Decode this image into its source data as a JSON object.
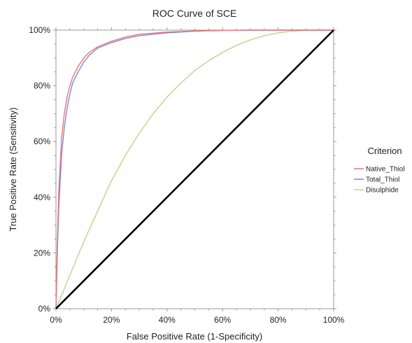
{
  "chart_data": {
    "type": "line",
    "title": "ROC Curve of SCE",
    "xlabel": "False Positive Rate (1-Specificity)",
    "ylabel": "True Positive Rate (Sensitivity)",
    "xlim": [
      0,
      1
    ],
    "ylim": [
      0,
      1
    ],
    "x_ticks": [
      "0%",
      "20%",
      "40%",
      "60%",
      "80%",
      "100%"
    ],
    "y_ticks": [
      "0%",
      "20%",
      "40%",
      "60%",
      "80%",
      "100%"
    ],
    "grid": false,
    "legend": {
      "title": "Criterion",
      "placement": "right"
    },
    "series": [
      {
        "name": "Native_Thiol",
        "color": "#e8767a",
        "x": [
          0,
          0.005,
          0.01,
          0.02,
          0.03,
          0.04,
          0.05,
          0.06,
          0.08,
          0.1,
          0.12,
          0.15,
          0.2,
          0.25,
          0.3,
          0.4,
          0.5,
          0.6,
          0.7,
          0.8,
          0.9,
          1.0
        ],
        "y": [
          0,
          0.24,
          0.42,
          0.61,
          0.7,
          0.76,
          0.8,
          0.83,
          0.87,
          0.9,
          0.92,
          0.94,
          0.96,
          0.975,
          0.985,
          0.993,
          0.997,
          0.999,
          1.0,
          1.0,
          1.0,
          1.0
        ]
      },
      {
        "name": "Total_Thiol",
        "color": "#7f85e0",
        "x": [
          0,
          0.005,
          0.01,
          0.02,
          0.03,
          0.04,
          0.05,
          0.06,
          0.08,
          0.1,
          0.12,
          0.15,
          0.2,
          0.25,
          0.3,
          0.4,
          0.5,
          0.6,
          0.7,
          0.8,
          0.9,
          1.0
        ],
        "y": [
          0,
          0.2,
          0.36,
          0.55,
          0.65,
          0.72,
          0.77,
          0.81,
          0.85,
          0.885,
          0.91,
          0.935,
          0.955,
          0.97,
          0.98,
          0.99,
          0.996,
          0.999,
          1.0,
          1.0,
          1.0,
          1.0
        ]
      },
      {
        "name": "Disulphide",
        "color": "#b5d989",
        "x": [
          0,
          0.05,
          0.1,
          0.15,
          0.2,
          0.25,
          0.3,
          0.35,
          0.4,
          0.45,
          0.5,
          0.55,
          0.6,
          0.65,
          0.7,
          0.75,
          0.8,
          0.85,
          0.9,
          0.95,
          1.0
        ],
        "y": [
          0,
          0.12,
          0.24,
          0.35,
          0.46,
          0.55,
          0.63,
          0.7,
          0.76,
          0.81,
          0.855,
          0.89,
          0.92,
          0.945,
          0.965,
          0.98,
          0.99,
          0.996,
          0.999,
          1.0,
          1.0
        ]
      }
    ],
    "reference_line": {
      "color": "#000000",
      "x": [
        0,
        1
      ],
      "y": [
        0,
        1
      ]
    }
  }
}
